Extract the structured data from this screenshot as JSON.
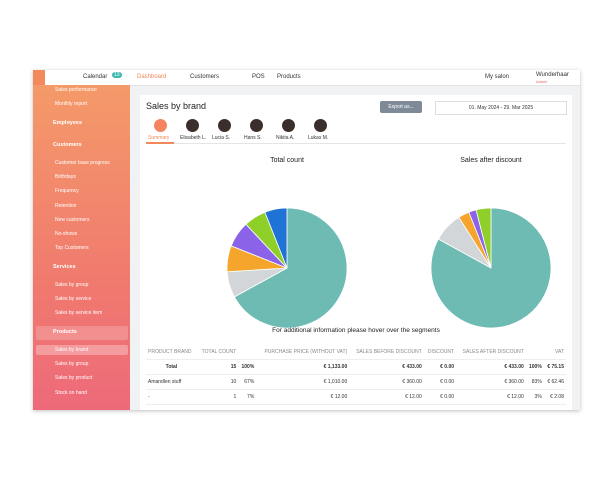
{
  "nav": {
    "items": [
      "Calendar",
      "Dashboard",
      "Customers",
      "POS",
      "Products"
    ],
    "badge": "13",
    "salon": "My salon",
    "user": "Wunderhaar",
    "role": "Admin"
  },
  "sidebar": {
    "items": [
      {
        "label": "Sales performance",
        "kind": "sub"
      },
      {
        "label": "Monthly report",
        "kind": "sub"
      },
      {
        "label": "Employees",
        "kind": "group"
      },
      {
        "label": "Customers",
        "kind": "group"
      },
      {
        "label": "Customer base progress",
        "kind": "sub"
      },
      {
        "label": "Birthdays",
        "kind": "sub"
      },
      {
        "label": "Frequency",
        "kind": "sub"
      },
      {
        "label": "Retention",
        "kind": "sub"
      },
      {
        "label": "New customers",
        "kind": "sub"
      },
      {
        "label": "No-shows",
        "kind": "sub"
      },
      {
        "label": "Top Customers",
        "kind": "sub"
      },
      {
        "label": "Services",
        "kind": "group"
      },
      {
        "label": "Sales by group",
        "kind": "sub"
      },
      {
        "label": "Sales by service",
        "kind": "sub"
      },
      {
        "label": "Sales by service item",
        "kind": "sub"
      },
      {
        "label": "Products",
        "kind": "active-group"
      },
      {
        "label": "Sales by brand",
        "kind": "active"
      },
      {
        "label": "Sales by group",
        "kind": "sub"
      },
      {
        "label": "Sales by product",
        "kind": "sub"
      },
      {
        "label": "Stock on hand",
        "kind": "sub"
      }
    ]
  },
  "header": {
    "title": "Sales by brand",
    "export": "Export as...",
    "range": "01. May 2024 - 29. Mar 2025"
  },
  "tabs": [
    "Summary",
    "Elisabeth L.",
    "Lucia S.",
    "Hans S.",
    "Nikita A.",
    "Lukas M."
  ],
  "chart_data": [
    {
      "type": "pie",
      "title": "Total count",
      "values": [
        67,
        7,
        7,
        7,
        6,
        6
      ],
      "colors": [
        "#6dbbb2",
        "#d3d6d9",
        "#f5a42c",
        "#8a63e8",
        "#8fcf2a",
        "#1f72d6"
      ]
    },
    {
      "type": "pie",
      "title": "Sales after discount",
      "values": [
        83,
        8,
        3,
        2,
        4
      ],
      "colors": [
        "#6dbbb2",
        "#d3d6d9",
        "#f5a42c",
        "#8a63e8",
        "#8fcf2a"
      ]
    }
  ],
  "hint": "For additional information please hover over the segments",
  "table": {
    "columns": [
      "PRODUCT BRAND",
      "TOTAL COUNT",
      "",
      "PURCHASE PRICE (WITHOUT VAT)",
      "SALES BEFORE DISCOUNT",
      "DISCOUNT",
      "SALES AFTER DISCOUNT",
      "",
      "VAT"
    ],
    "rows": [
      [
        "Total",
        "15",
        "100%",
        "€ 1,133.00",
        "€ 433.00",
        "€ 0.00",
        "€ 433.00",
        "100%",
        "€ 75.15"
      ],
      [
        "Amandlen stuff",
        "10",
        "67%",
        "€ 1,010.00",
        "€ 360.00",
        "€ 0.00",
        "€ 360.00",
        "83%",
        "€ 62.46"
      ],
      [
        "-",
        "1",
        "7%",
        "€ 12.00",
        "€ 12.00",
        "€ 0.00",
        "€ 12.00",
        "3%",
        "€ 2.08"
      ]
    ]
  }
}
